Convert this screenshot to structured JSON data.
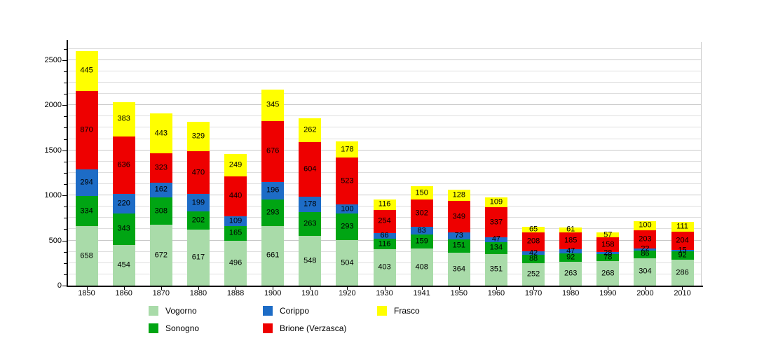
{
  "chart_data": {
    "type": "bar",
    "stacked": true,
    "title": "",
    "xlabel": "",
    "ylabel": "",
    "categories": [
      "1850",
      "1860",
      "1870",
      "1880",
      "1888",
      "1900",
      "1910",
      "1920",
      "1930",
      "1941",
      "1950",
      "1960",
      "1970",
      "1980",
      "1990",
      "2000",
      "2010"
    ],
    "series": [
      {
        "name": "Vogorno",
        "color": "#a9dba9",
        "values": [
          658,
          454,
          672,
          617,
          496,
          661,
          548,
          504,
          403,
          408,
          364,
          351,
          252,
          263,
          268,
          304,
          286
        ]
      },
      {
        "name": "Sonogno",
        "color": "#00a513",
        "values": [
          334,
          343,
          308,
          202,
          165,
          293,
          263,
          293,
          116,
          159,
          151,
          134,
          88,
          92,
          78,
          86,
          92
        ]
      },
      {
        "name": "Corippo",
        "color": "#1d6cc6",
        "values": [
          294,
          220,
          162,
          199,
          109,
          196,
          178,
          100,
          66,
          83,
          73,
          47,
          42,
          47,
          28,
          22,
          15
        ]
      },
      {
        "name": "Brione (Verzasca)",
        "color": "#ee0000",
        "values": [
          870,
          636,
          323,
          470,
          440,
          676,
          604,
          523,
          254,
          302,
          349,
          337,
          208,
          185,
          158,
          203,
          204
        ]
      },
      {
        "name": "Frasco",
        "color": "#ffff00",
        "values": [
          445,
          383,
          443,
          329,
          249,
          345,
          262,
          178,
          116,
          150,
          128,
          109,
          65,
          61,
          57,
          100,
          111
        ]
      }
    ],
    "y_axis": {
      "ticks": [
        0,
        500,
        1000,
        1500,
        2000,
        2500
      ],
      "minor_step": 125,
      "max": 2700
    },
    "grid": true,
    "legend_position": "bottom",
    "value_labels": "inside-segments"
  }
}
